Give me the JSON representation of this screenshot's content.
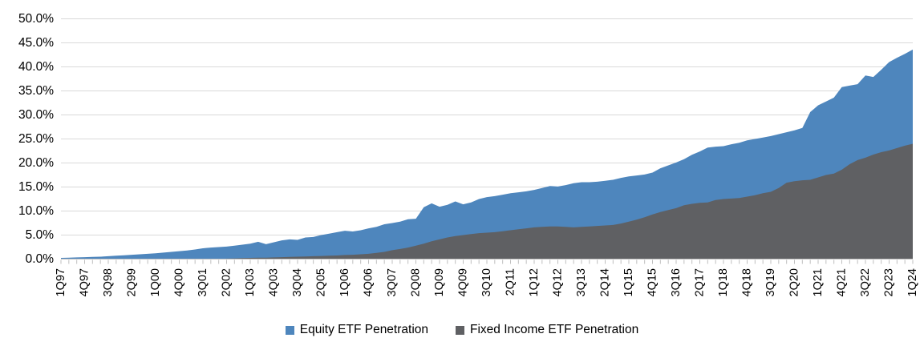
{
  "chart_data": {
    "type": "area",
    "mode": "overlay",
    "title": "",
    "xlabel": "",
    "ylabel": "",
    "ylim": [
      0,
      50
    ],
    "grid": "horizontal",
    "legend_position": "bottom",
    "label_every": 3,
    "x_range": {
      "start": "1Q97",
      "end": "1Q24",
      "frequency": "quarterly"
    },
    "y_tick_labels": [
      "0.0%",
      "5.0%",
      "10.0%",
      "15.0%",
      "20.0%",
      "25.0%",
      "30.0%",
      "35.0%",
      "40.0%",
      "45.0%",
      "50.0%"
    ],
    "x_tick_labels": [
      "1Q97",
      "4Q97",
      "3Q98",
      "2Q99",
      "1Q00",
      "4Q00",
      "3Q01",
      "2Q02",
      "1Q03",
      "4Q03",
      "3Q04",
      "2Q05",
      "1Q06",
      "4Q06",
      "3Q07",
      "2Q08",
      "1Q09",
      "4Q09",
      "3Q10",
      "2Q11",
      "1Q12",
      "4Q12",
      "3Q13",
      "2Q14",
      "1Q15",
      "4Q15",
      "3Q16",
      "2Q17",
      "1Q18",
      "4Q18",
      "3Q19",
      "2Q20",
      "1Q21",
      "4Q21",
      "3Q22",
      "2Q23",
      "1Q24"
    ],
    "series": [
      {
        "name": "Equity ETF Penetration",
        "color": "#4E86BD",
        "values": [
          0.25,
          0.3,
          0.35,
          0.4,
          0.45,
          0.5,
          0.6,
          0.7,
          0.8,
          0.9,
          1.0,
          1.1,
          1.2,
          1.35,
          1.5,
          1.65,
          1.8,
          2.0,
          2.25,
          2.4,
          2.5,
          2.6,
          2.8,
          3.0,
          3.2,
          3.6,
          3.1,
          3.5,
          3.9,
          4.1,
          4.0,
          4.5,
          4.6,
          5.0,
          5.3,
          5.6,
          5.9,
          5.75,
          6.0,
          6.4,
          6.7,
          7.25,
          7.5,
          7.8,
          8.3,
          8.4,
          10.8,
          11.6,
          10.9,
          11.3,
          12.0,
          11.4,
          11.8,
          12.5,
          12.9,
          13.1,
          13.4,
          13.7,
          13.9,
          14.1,
          14.4,
          14.8,
          15.2,
          15.1,
          15.4,
          15.8,
          16.0,
          16.0,
          16.1,
          16.3,
          16.5,
          16.9,
          17.2,
          17.4,
          17.6,
          18.0,
          18.9,
          19.5,
          20.1,
          20.8,
          21.7,
          22.4,
          23.2,
          23.4,
          23.5,
          23.9,
          24.2,
          24.7,
          25.0,
          25.3,
          25.6,
          26.0,
          26.4,
          26.8,
          27.3,
          30.6,
          32.0,
          32.8,
          33.6,
          35.8,
          36.1,
          36.4,
          38.2,
          37.9,
          39.4,
          41.0,
          41.9,
          42.7,
          43.6
        ]
      },
      {
        "name": "Fixed Income ETF Penetration",
        "color": "#5F6063",
        "values": [
          0,
          0,
          0,
          0,
          0,
          0,
          0,
          0,
          0,
          0,
          0,
          0,
          0,
          0,
          0,
          0,
          0,
          0,
          0,
          0,
          0,
          0.1,
          0.15,
          0.2,
          0.25,
          0.3,
          0.3,
          0.35,
          0.4,
          0.45,
          0.5,
          0.55,
          0.6,
          0.65,
          0.7,
          0.75,
          0.85,
          0.9,
          1.0,
          1.1,
          1.3,
          1.5,
          1.85,
          2.1,
          2.4,
          2.8,
          3.2,
          3.7,
          4.1,
          4.5,
          4.8,
          5.0,
          5.2,
          5.4,
          5.5,
          5.6,
          5.8,
          6.0,
          6.2,
          6.4,
          6.6,
          6.7,
          6.8,
          6.8,
          6.7,
          6.6,
          6.7,
          6.8,
          6.9,
          7.0,
          7.1,
          7.4,
          7.8,
          8.2,
          8.7,
          9.3,
          9.8,
          10.2,
          10.6,
          11.2,
          11.5,
          11.7,
          11.8,
          12.3,
          12.5,
          12.6,
          12.7,
          13.0,
          13.3,
          13.7,
          14.0,
          14.8,
          15.9,
          16.2,
          16.4,
          16.5,
          17.0,
          17.5,
          17.8,
          18.6,
          19.75,
          20.6,
          21.1,
          21.75,
          22.25,
          22.6,
          23.1,
          23.6,
          24.0
        ]
      }
    ],
    "colors": {
      "gridline": "#D9D9D9",
      "axis": "#BFBFBF",
      "text": "#000000"
    }
  }
}
